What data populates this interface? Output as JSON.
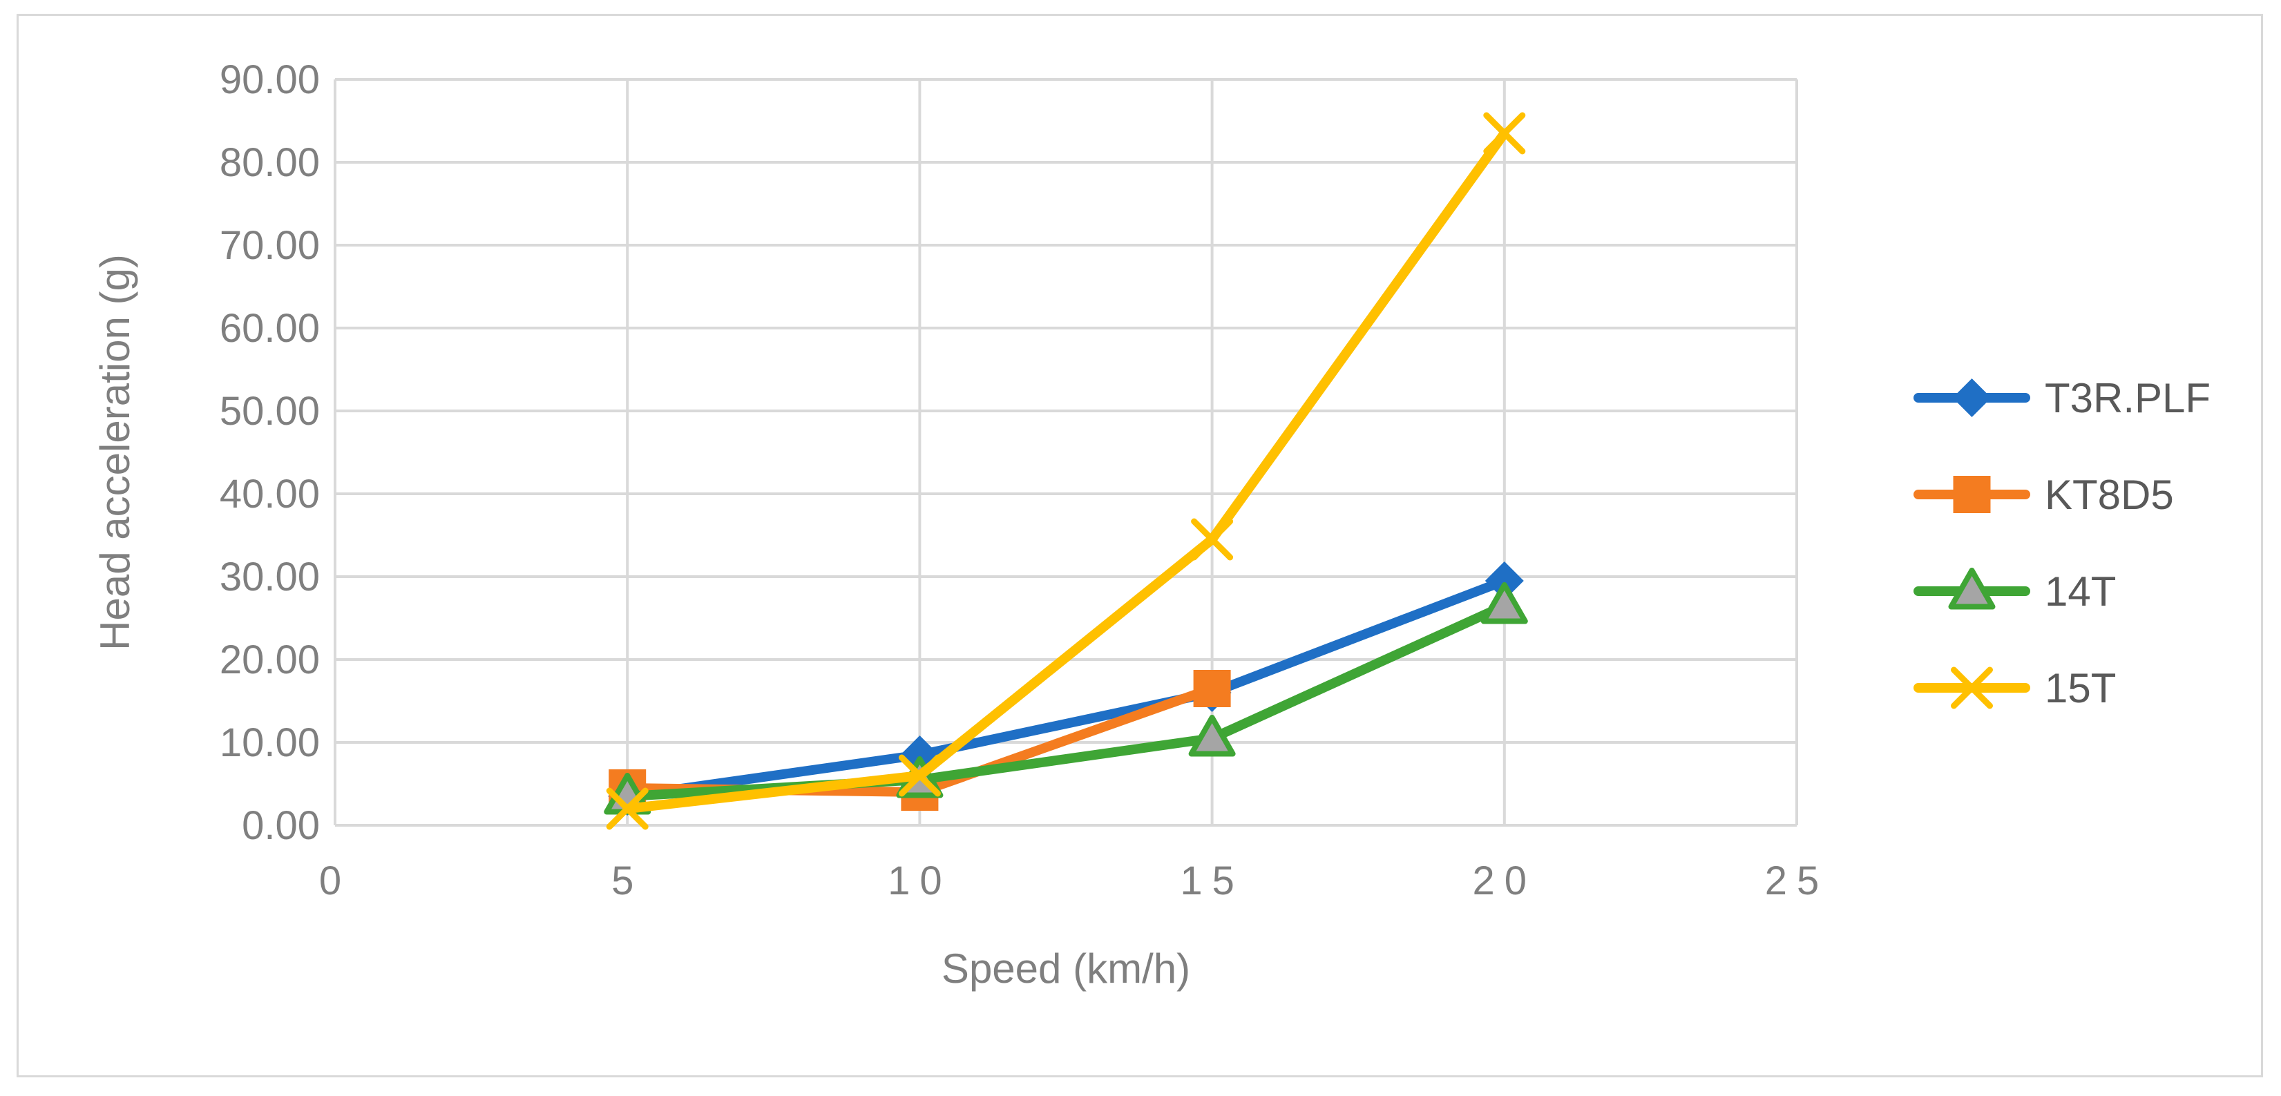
{
  "chart_data": {
    "type": "line",
    "title": "",
    "xlabel": "Speed (km/h)",
    "ylabel": "Head acceleration (g)",
    "xlim": [
      0,
      25
    ],
    "ylim": [
      0,
      90
    ],
    "xticks": [
      0,
      5,
      10,
      15,
      20,
      25
    ],
    "xtick_labels": [
      "0",
      "5",
      "10",
      "15",
      "20",
      "25"
    ],
    "yticks": [
      0,
      10,
      20,
      30,
      40,
      50,
      60,
      70,
      80,
      90
    ],
    "ytick_labels": [
      "0.00",
      "10.00",
      "20.00",
      "30.00",
      "40.00",
      "50.00",
      "60.00",
      "70.00",
      "80.00",
      "90.00"
    ],
    "grid": true,
    "legend_position": "right",
    "series": [
      {
        "name": "T3R.PLF",
        "color": "#1f6fc5",
        "marker": "diamond",
        "x": [
          5,
          10,
          15,
          20
        ],
        "y": [
          3.5,
          8.5,
          16.0,
          29.5
        ]
      },
      {
        "name": "KT8D5",
        "color": "#f47c20",
        "marker": "square",
        "x": [
          5,
          10,
          15,
          20
        ],
        "y": [
          4.5,
          4.0,
          16.5,
          null
        ]
      },
      {
        "name": "14T",
        "color": "#3fa535",
        "marker": "triangle",
        "x": [
          5,
          10,
          15,
          20
        ],
        "y": [
          3.5,
          5.5,
          10.5,
          26.5
        ]
      },
      {
        "name": "15T",
        "color": "#ffc000",
        "marker": "x",
        "x": [
          5,
          10,
          15,
          20
        ],
        "y": [
          2.0,
          6.0,
          34.5,
          83.5
        ]
      }
    ]
  }
}
